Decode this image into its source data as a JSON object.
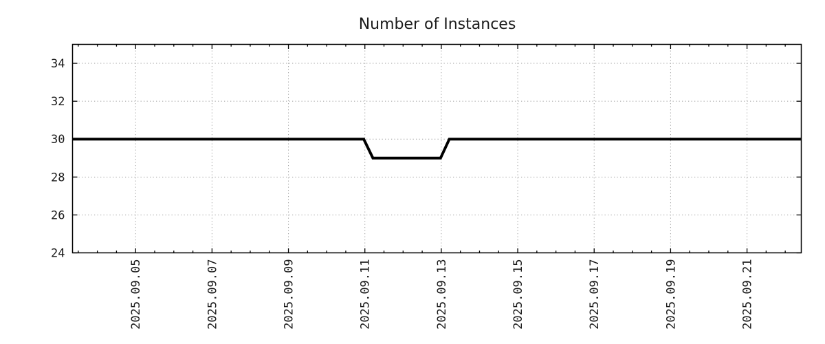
{
  "chart_data": {
    "type": "line",
    "title": "Number of Instances",
    "x_axis": {
      "unit_note": "dates in September 2025, day-of-month axis units",
      "tick_labels": [
        "2025.09.05",
        "2025.09.07",
        "2025.09.09",
        "2025.09.11",
        "2025.09.13",
        "2025.09.15",
        "2025.09.17",
        "2025.09.19",
        "2025.09.21"
      ],
      "tick_values_day": [
        5,
        7,
        9,
        11,
        13,
        15,
        17,
        19,
        21
      ],
      "minor_tick_step_days": 0.5,
      "xlim_day": [
        3.35,
        22.42
      ],
      "label_rotation_deg": -90
    },
    "y_axis": {
      "tick_labels": [
        "24",
        "26",
        "28",
        "30",
        "32",
        "34"
      ],
      "tick_values": [
        24,
        26,
        28,
        30,
        32,
        34
      ],
      "ylim": [
        24,
        35
      ]
    },
    "grid": {
      "visible": true,
      "style": "dotted",
      "color": "#9e9e9e"
    },
    "legend": {
      "visible": false
    },
    "series": [
      {
        "name": "Number of Instances",
        "color": "#000000",
        "line_width": 4,
        "points": [
          {
            "day": 3.35,
            "value": 30
          },
          {
            "day": 10.97,
            "value": 30
          },
          {
            "day": 11.21,
            "value": 29
          },
          {
            "day": 12.98,
            "value": 29
          },
          {
            "day": 13.21,
            "value": 30
          },
          {
            "day": 22.42,
            "value": 30
          }
        ]
      }
    ],
    "border_color": "#000000",
    "text_color": "#1a1a1a",
    "background": "#ffffff"
  }
}
